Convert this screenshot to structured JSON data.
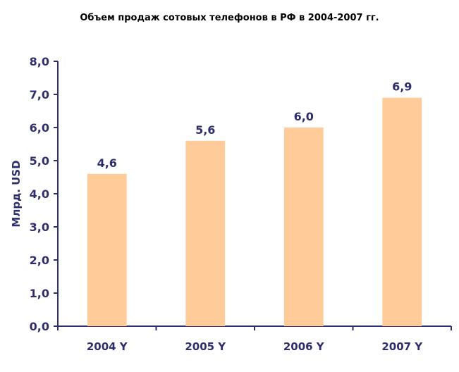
{
  "chart_data": {
    "type": "bar",
    "title": "Объем продаж сотовых телефонов в РФ в 2004-2007 гг.",
    "ylabel": "Млрд. USD",
    "xlabel": "",
    "categories": [
      "2004 Y",
      "2005 Y",
      "2006 Y",
      "2007 Y"
    ],
    "values": [
      4.6,
      5.6,
      6.0,
      6.9
    ],
    "value_labels": [
      "4,6",
      "5,6",
      "6,0",
      "6,9"
    ],
    "ylim": [
      0,
      8
    ],
    "yticks": [
      0,
      1,
      2,
      3,
      4,
      5,
      6,
      7,
      8
    ],
    "ytick_labels": [
      "0,0",
      "1,0",
      "2,0",
      "3,0",
      "4,0",
      "5,0",
      "6,0",
      "7,0",
      "8,0"
    ],
    "grid": false,
    "colors": {
      "bar": "#ffcc99",
      "axis": "#2e2e6e",
      "text": "#2e2e6e"
    }
  }
}
